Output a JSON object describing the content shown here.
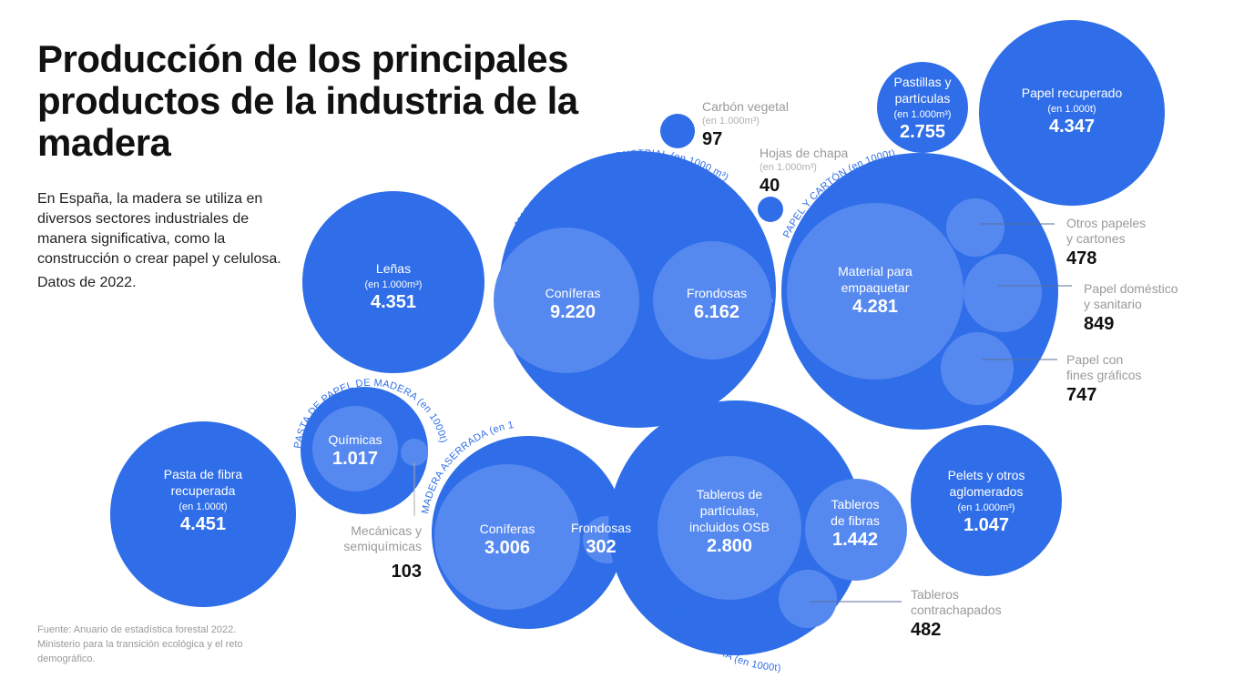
{
  "header": {
    "title": "Producción de los principales productos de la industria de la madera",
    "intro": "En España, la madera se utiliza en diversos sectores industriales de manera significativa, como la construcción o crear papel y celulosa.",
    "year_note": "Datos de 2022."
  },
  "source": "Fuente: Anuario de estadística forestal 2022. Ministerio para la transición ecológica y el reto demográfico.",
  "colors": {
    "outer_circle": "#2f6ee8",
    "inner_circle": "#5689f0",
    "text_on_circle": "#ffffff",
    "external_label": "#9a9a9a",
    "external_value": "#111111",
    "group_label": "#2f6ee8"
  },
  "chart_data": {
    "type": "bubble",
    "title": "Producción de los principales productos de la industria de la madera",
    "year": 2022,
    "groups": [
      {
        "id": "lenas",
        "name": "Leñas",
        "unit": "(en 1.000m³)",
        "value": 4351,
        "value_label": "4.351"
      },
      {
        "id": "maderas_rollo",
        "name": "MADERAS EN ROLLO INDUSTRIAL",
        "unit": "(en 1000 m³)",
        "children": [
          {
            "name": "Coníferas",
            "value": 9220,
            "value_label": "9.220"
          },
          {
            "name": "Frondosas",
            "value": 6162,
            "value_label": "6.162"
          }
        ]
      },
      {
        "id": "carbon_vegetal",
        "name": "Carbón vegetal",
        "unit": "(en 1.000m³)",
        "value": 97,
        "value_label": "97"
      },
      {
        "id": "hojas_chapa",
        "name": "Hojas de chapa",
        "unit": "(en 1.000m³)",
        "value": 40,
        "value_label": "40"
      },
      {
        "id": "papel_carton",
        "name": "PAPEL Y CARTÓN",
        "unit": "(en 1000t)",
        "children": [
          {
            "name": "Material para empaquetar",
            "name_lines": [
              "Material para",
              "empaquetar"
            ],
            "value": 4281,
            "value_label": "4.281"
          },
          {
            "name": "Otros papeles y cartones",
            "name_lines": [
              "Otros papeles",
              "y cartones"
            ],
            "value": 478,
            "value_label": "478"
          },
          {
            "name": "Papel doméstico y sanitario",
            "name_lines": [
              "Papel doméstico",
              "y sanitario"
            ],
            "value": 849,
            "value_label": "849"
          },
          {
            "name": "Papel con fines gráficos",
            "name_lines": [
              "Papel con",
              "fines gráficos"
            ],
            "value": 747,
            "value_label": "747"
          }
        ]
      },
      {
        "id": "pastillas",
        "name": "Pastillas y partículas",
        "name_lines": [
          "Pastillas y",
          "partículas"
        ],
        "unit": "(en 1.000m³)",
        "value": 2755,
        "value_label": "2.755"
      },
      {
        "id": "papel_recuperado",
        "name": "Papel recuperado",
        "unit": "(en 1.000t)",
        "value": 4347,
        "value_label": "4.347"
      },
      {
        "id": "pasta_fibra",
        "name": "Pasta de fibra recuperada",
        "name_lines": [
          "Pasta de fibra",
          "recuperada"
        ],
        "unit": "(en 1.000t)",
        "value": 4451,
        "value_label": "4.451"
      },
      {
        "id": "pasta_papel",
        "name": "PASTA DE PAPEL DE MADERA",
        "unit": "(en 1000t)",
        "children": [
          {
            "name": "Químicas",
            "value": 1017,
            "value_label": "1.017"
          },
          {
            "name": "Mecánicas y semiquímicas",
            "name_lines": [
              "Mecánicas y",
              "semiquímicas"
            ],
            "value": 103,
            "value_label": "103"
          }
        ]
      },
      {
        "id": "madera_aserrada",
        "name": "MADERA ASERRADA",
        "unit": "(en 1000 m³)",
        "children": [
          {
            "name": "Coníferas",
            "value": 3006,
            "value_label": "3.006"
          },
          {
            "name": "Frondosas",
            "value": 302,
            "value_label": "302"
          }
        ]
      },
      {
        "id": "tableros",
        "name": "TABLEROS DE MADERA",
        "unit": "(en 1000t)",
        "children": [
          {
            "name": "Tableros de partículas, incluidos OSB",
            "name_lines": [
              "Tableros de",
              "partículas,",
              "incluidos OSB"
            ],
            "value": 2800,
            "value_label": "2.800"
          },
          {
            "name": "Tableros de fibras",
            "name_lines": [
              "Tableros",
              "de fibras"
            ],
            "value": 1442,
            "value_label": "1.442"
          },
          {
            "name": "Tableros contrachapados",
            "name_lines": [
              "Tableros",
              "contrachapados"
            ],
            "value": 482,
            "value_label": "482"
          }
        ]
      },
      {
        "id": "pelets",
        "name": "Pelets y otros aglomerados",
        "name_lines": [
          "Pelets y otros",
          "aglomerados"
        ],
        "unit": "(en 1.000m³)",
        "value": 1047,
        "value_label": "1.047"
      }
    ]
  }
}
